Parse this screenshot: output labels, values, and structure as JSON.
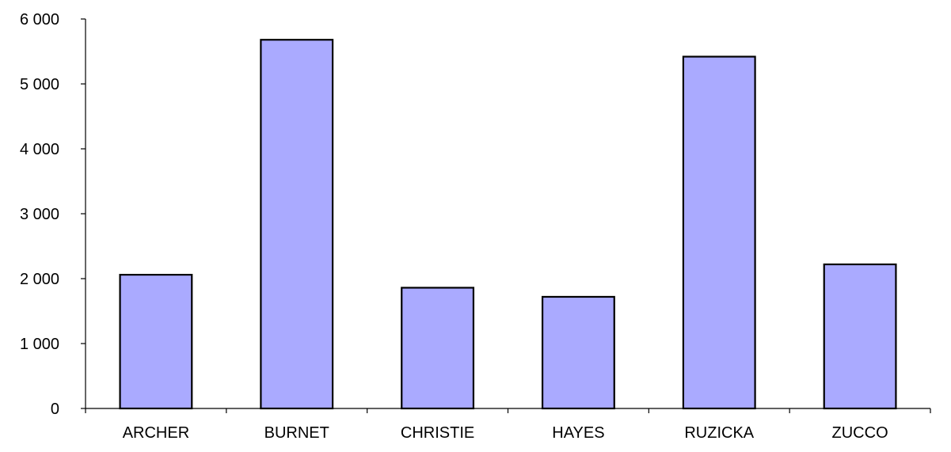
{
  "chart_data": {
    "type": "bar",
    "title": "",
    "xlabel": "",
    "ylabel": "",
    "categories": [
      "ARCHER",
      "BURNET",
      "CHRISTIE",
      "HAYES",
      "RUZICKA",
      "ZUCCO"
    ],
    "values": [
      2060,
      5680,
      1860,
      1720,
      5420,
      2220
    ],
    "ylim": [
      0,
      6000
    ],
    "yticks": [
      0,
      1000,
      2000,
      3000,
      4000,
      5000,
      6000
    ],
    "ytick_labels": [
      "0",
      "1 000",
      "2 000",
      "3 000",
      "4 000",
      "5 000",
      "6 000"
    ],
    "grid": false,
    "legend": "none",
    "colors": {
      "bar_fill": "#aaaaff",
      "bar_stroke": "#000000",
      "axis": "#000000"
    }
  }
}
